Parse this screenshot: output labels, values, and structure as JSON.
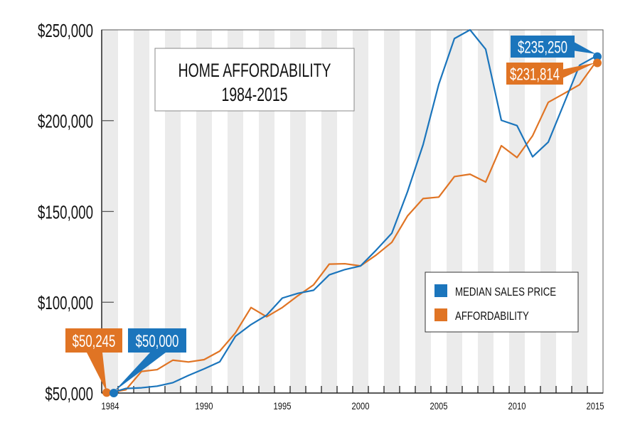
{
  "chart_data": {
    "type": "line",
    "title": "HOME AFFORDABILITY",
    "subtitle": "1984-2015",
    "xlabel": "",
    "ylabel": "",
    "x": [
      1984,
      1985,
      1986,
      1987,
      1988,
      1989,
      1990,
      1991,
      1992,
      1993,
      1994,
      1995,
      1996,
      1997,
      1998,
      1999,
      2000,
      2001,
      2002,
      2003,
      2004,
      2005,
      2006,
      2007,
      2008,
      2009,
      2010,
      2011,
      2012,
      2013,
      2014,
      2015
    ],
    "xlim": [
      1984,
      2015
    ],
    "ylim": [
      50000,
      250000
    ],
    "x_tick_labels": [
      "1984",
      "1990",
      "1995",
      "2000",
      "2005",
      "2010",
      "2015"
    ],
    "x_tick_values": [
      1984,
      1990,
      1995,
      2000,
      2005,
      2010,
      2015
    ],
    "y_tick_labels": [
      "$50,000",
      "$100,000",
      "$150,000",
      "$200,000",
      "$250,000"
    ],
    "y_tick_values": [
      50000,
      100000,
      150000,
      200000,
      250000
    ],
    "grid": "alternating vertical year bands",
    "legend_placement": "right",
    "series": [
      {
        "name": "MEDIAN SALES PRICE",
        "color": "#1b75bc",
        "values": [
          50000,
          52500,
          52900,
          53800,
          55700,
          59700,
          63300,
          67200,
          81200,
          87700,
          92900,
          102300,
          104900,
          106600,
          115100,
          118000,
          120000,
          128700,
          138000,
          160800,
          186800,
          220000,
          245200,
          250000,
          239300,
          200200,
          197300,
          180100,
          188200,
          209300,
          230500,
          235250
        ]
      },
      {
        "name": "AFFORDABILITY",
        "color": "#e07424",
        "values": [
          50245,
          51800,
          61900,
          62900,
          68100,
          67100,
          68400,
          73100,
          83100,
          97100,
          92000,
          97100,
          103600,
          109600,
          121000,
          121200,
          120000,
          126000,
          133000,
          147500,
          157100,
          157900,
          169200,
          170500,
          166200,
          186200,
          179700,
          191700,
          210100,
          214900,
          219800,
          231814
        ]
      }
    ],
    "annotations": [
      {
        "text": "$50,245",
        "series": 1,
        "year": 1984,
        "color": "#e07424"
      },
      {
        "text": "$50,000",
        "series": 0,
        "year": 1984,
        "color": "#1b75bc"
      },
      {
        "text": "$235,250",
        "series": 0,
        "year": 2015,
        "color": "#1b75bc"
      },
      {
        "text": "$231,814",
        "series": 1,
        "year": 2015,
        "color": "#e07424"
      }
    ]
  }
}
